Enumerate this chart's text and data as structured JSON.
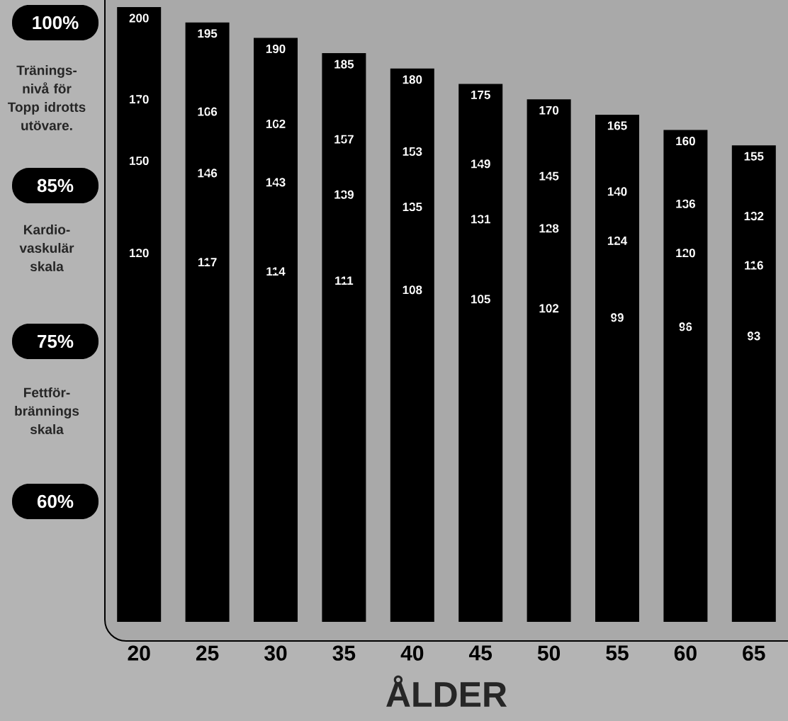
{
  "chart_data": {
    "type": "bar",
    "ylim": [
      0,
      200
    ],
    "xlabel": "ÅLDER",
    "categories": [
      "20",
      "25",
      "30",
      "35",
      "40",
      "45",
      "50",
      "55",
      "60",
      "65"
    ],
    "data_labels": true,
    "series": [
      {
        "color": "#000000",
        "values": [
          200,
          195,
          190,
          185,
          180,
          175,
          170,
          165,
          160,
          155
        ]
      },
      {
        "type": "scatter",
        "color": "#000000",
        "values": [
          170,
          166,
          162,
          157,
          153,
          149,
          145,
          140,
          136,
          132
        ]
      },
      {
        "type": "scatter",
        "color": "#000000",
        "values": [
          150,
          146,
          143,
          139,
          135,
          131,
          128,
          124,
          120,
          116
        ]
      },
      {
        "type": "scatter",
        "color": "#000000",
        "values": [
          120,
          117,
          114,
          111,
          108,
          105,
          102,
          99,
          96,
          93
        ]
      }
    ],
    "annotations": [
      "100%",
      "Tränings-nivå för Topp idrotts utövare.",
      "85%",
      "Kardio-vaskulär skala",
      "75%",
      "Fettför-brännings skala",
      "60%"
    ]
  }
}
